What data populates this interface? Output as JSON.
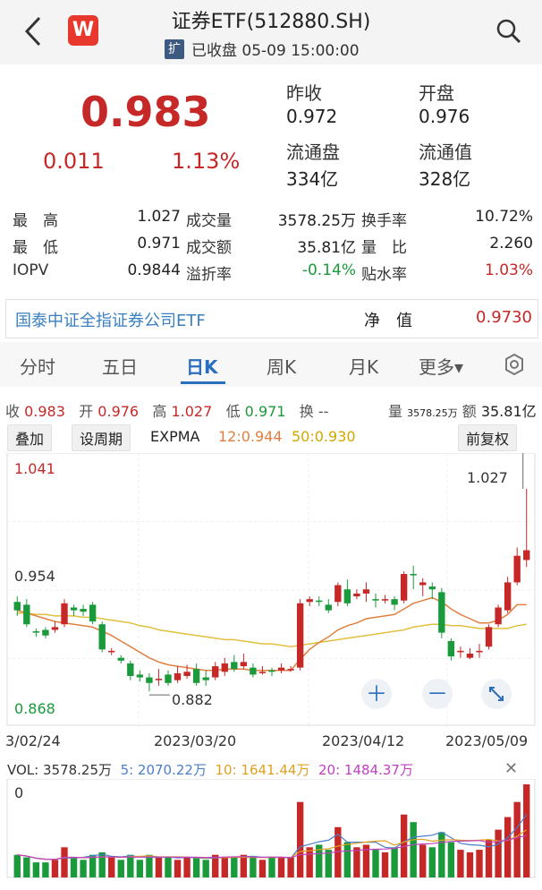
{
  "header": {
    "back_icon": "chevron-left-icon",
    "logo_text": "W",
    "title": "证券ETF(512880.SH)",
    "badge": "扩",
    "status": "已收盘 05-09 15:00:00",
    "search_icon": "search-icon"
  },
  "quote": {
    "price": "0.983",
    "change": "0.011",
    "change_pct": "1.13%",
    "prev_close_label": "昨收",
    "prev_close": "0.972",
    "open_label": "开盘",
    "open": "0.976",
    "float_shares_label": "流通盘",
    "float_shares": "334亿",
    "float_value_label": "流通值",
    "float_value": "328亿"
  },
  "stats": [
    {
      "l1": "最　高",
      "v1": "1.027",
      "l2": "成交量",
      "v2": "3578.25万",
      "l3": "换手率",
      "v3": "10.72%"
    },
    {
      "l1": "最　低",
      "v1": "0.971",
      "l2": "成交额",
      "v2": "35.81亿",
      "l3": "量　比",
      "v3": "2.260"
    },
    {
      "l1": "IOPV",
      "v1": "0.9844",
      "l2": "溢折率",
      "v2": "-0.14%",
      "l3": "贴水率",
      "v3": "1.03%"
    }
  ],
  "etf": {
    "name": "国泰中证全指证券公司ETF",
    "nav_label": "净　值",
    "nav": "0.9730"
  },
  "tabs": [
    "分时",
    "五日",
    "日K",
    "周K",
    "月K",
    "更多▾"
  ],
  "ohlc": {
    "close_label": "收",
    "close": "0.983",
    "open_label": "开",
    "open": "0.976",
    "high_label": "高",
    "high": "1.027",
    "low_label": "低",
    "low": "0.971",
    "turn_label": "换",
    "turn": "--",
    "vol_label": "量",
    "vol": "3578.25万",
    "amt_label": "额",
    "amt": "35.81亿"
  },
  "tools": {
    "overlay": "叠加",
    "period": "设周期",
    "expma_label": "EXPMA",
    "expma12": "12:0.944",
    "expma50": "50:0.930",
    "adjust": "前复权"
  },
  "chart_data": {
    "type": "candlestick",
    "y_labels": [
      "1.041",
      "0.954",
      "0.868"
    ],
    "ylim": [
      0.868,
      1.041
    ],
    "x_labels": [
      "3/02/24",
      "2023/03/20",
      "2023/04/12",
      "2023/05/09"
    ],
    "annotations": [
      {
        "text": "1.027",
        "kind": "max"
      },
      {
        "text": "0.882",
        "kind": "min"
      }
    ],
    "candles": [
      [
        0.946,
        0.94,
        0.95,
        0.936
      ],
      [
        0.944,
        0.93,
        0.948,
        0.928
      ],
      [
        0.925,
        0.924,
        0.927,
        0.921
      ],
      [
        0.926,
        0.922,
        0.928,
        0.92
      ],
      [
        0.926,
        0.928,
        0.932,
        0.924
      ],
      [
        0.93,
        0.945,
        0.948,
        0.928
      ],
      [
        0.942,
        0.94,
        0.944,
        0.936
      ],
      [
        0.941,
        0.939,
        0.944,
        0.936
      ],
      [
        0.944,
        0.932,
        0.946,
        0.93
      ],
      [
        0.93,
        0.912,
        0.932,
        0.91
      ],
      [
        0.91,
        0.911,
        0.913,
        0.908
      ],
      [
        0.906,
        0.904,
        0.908,
        0.902
      ],
      [
        0.902,
        0.893,
        0.904,
        0.89
      ],
      [
        0.894,
        0.892,
        0.897,
        0.889
      ],
      [
        0.892,
        0.888,
        0.895,
        0.882
      ],
      [
        0.89,
        0.891,
        0.898,
        0.886
      ],
      [
        0.894,
        0.888,
        0.897,
        0.886
      ],
      [
        0.89,
        0.895,
        0.9,
        0.888
      ],
      [
        0.893,
        0.896,
        0.901,
        0.891
      ],
      [
        0.898,
        0.888,
        0.902,
        0.886
      ],
      [
        0.892,
        0.89,
        0.897,
        0.886
      ],
      [
        0.892,
        0.9,
        0.903,
        0.89
      ],
      [
        0.896,
        0.902,
        0.906,
        0.893
      ],
      [
        0.903,
        0.898,
        0.908,
        0.896
      ],
      [
        0.9,
        0.903,
        0.909,
        0.898
      ],
      [
        0.899,
        0.894,
        0.902,
        0.892
      ],
      [
        0.895,
        0.896,
        0.9,
        0.894
      ],
      [
        0.897,
        0.896,
        0.899,
        0.893
      ],
      [
        0.897,
        0.899,
        0.902,
        0.895
      ],
      [
        0.897,
        0.898,
        0.9,
        0.896
      ],
      [
        0.899,
        0.945,
        0.948,
        0.897
      ],
      [
        0.946,
        0.948,
        0.95,
        0.943
      ],
      [
        0.947,
        0.946,
        0.95,
        0.943
      ],
      [
        0.944,
        0.94,
        0.948,
        0.938
      ],
      [
        0.946,
        0.958,
        0.96,
        0.943
      ],
      [
        0.955,
        0.945,
        0.962,
        0.943
      ],
      [
        0.95,
        0.952,
        0.955,
        0.948
      ],
      [
        0.952,
        0.955,
        0.96,
        0.946
      ],
      [
        0.948,
        0.947,
        0.952,
        0.942
      ],
      [
        0.947,
        0.948,
        0.951,
        0.945
      ],
      [
        0.948,
        0.944,
        0.95,
        0.94
      ],
      [
        0.947,
        0.966,
        0.968,
        0.945
      ],
      [
        0.966,
        0.965,
        0.972,
        0.955
      ],
      [
        0.958,
        0.96,
        0.963,
        0.95
      ],
      [
        0.957,
        0.955,
        0.96,
        0.948
      ],
      [
        0.953,
        0.924,
        0.956,
        0.92
      ],
      [
        0.918,
        0.907,
        0.92,
        0.904
      ],
      [
        0.91,
        0.911,
        0.914,
        0.906
      ],
      [
        0.906,
        0.909,
        0.913,
        0.905
      ],
      [
        0.91,
        0.911,
        0.916,
        0.906
      ],
      [
        0.914,
        0.928,
        0.93,
        0.912
      ],
      [
        0.93,
        0.942,
        0.944,
        0.928
      ],
      [
        0.94,
        0.96,
        0.964,
        0.938
      ],
      [
        0.96,
        0.979,
        0.985,
        0.958
      ],
      [
        0.976,
        0.983,
        1.027,
        0.971
      ]
    ],
    "expma12": [
      0.94,
      0.938,
      0.936,
      0.934,
      0.932,
      0.931,
      0.93,
      0.929,
      0.928,
      0.925,
      0.922,
      0.918,
      0.914,
      0.91,
      0.906,
      0.903,
      0.901,
      0.9,
      0.899,
      0.898,
      0.897,
      0.897,
      0.898,
      0.898,
      0.898,
      0.897,
      0.897,
      0.897,
      0.897,
      0.897,
      0.905,
      0.912,
      0.917,
      0.921,
      0.926,
      0.929,
      0.931,
      0.934,
      0.935,
      0.936,
      0.937,
      0.941,
      0.945,
      0.947,
      0.949,
      0.946,
      0.941,
      0.937,
      0.934,
      0.931,
      0.931,
      0.933,
      0.937,
      0.944,
      0.944
    ],
    "expma50": [
      0.938,
      0.938,
      0.937,
      0.937,
      0.936,
      0.936,
      0.936,
      0.935,
      0.935,
      0.934,
      0.933,
      0.932,
      0.931,
      0.929,
      0.928,
      0.926,
      0.925,
      0.924,
      0.923,
      0.922,
      0.921,
      0.92,
      0.919,
      0.919,
      0.918,
      0.917,
      0.916,
      0.916,
      0.915,
      0.914,
      0.915,
      0.916,
      0.917,
      0.918,
      0.919,
      0.92,
      0.921,
      0.922,
      0.923,
      0.924,
      0.925,
      0.926,
      0.928,
      0.929,
      0.93,
      0.93,
      0.929,
      0.929,
      0.928,
      0.927,
      0.927,
      0.927,
      0.927,
      0.929,
      0.93
    ]
  },
  "volume": {
    "label": "VOL: 3578.25万",
    "ma5": "5: 2070.22万",
    "ma10": "10: 1641.44万",
    "ma20": "20: 1484.37万",
    "zero": "0",
    "bars": [
      9,
      8,
      6,
      6,
      7,
      12,
      8,
      7,
      9,
      10,
      8,
      7,
      9,
      7,
      9,
      8,
      8,
      7,
      8,
      8,
      7,
      9,
      8,
      8,
      9,
      8,
      7,
      8,
      8,
      8,
      30,
      12,
      13,
      11,
      20,
      14,
      12,
      13,
      11,
      10,
      12,
      25,
      22,
      13,
      12,
      18,
      14,
      11,
      10,
      11,
      15,
      19,
      24,
      30,
      37
    ]
  },
  "colors": {
    "up": "#c62828",
    "down": "#1a9a3a",
    "ema12": "#e08040",
    "ema50": "#e0c040",
    "ma5": "#4a7ec9",
    "ma10": "#e0a020",
    "ma20": "#c040c0"
  }
}
